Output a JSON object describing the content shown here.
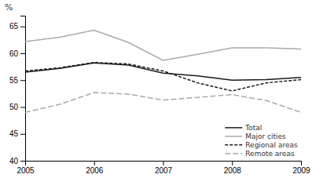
{
  "chart_data": {
    "type": "line",
    "ylabel": "%",
    "x": [
      2005,
      2005.5,
      2006,
      2006.5,
      2007,
      2007.5,
      2008,
      2008.5,
      2009
    ],
    "series": [
      {
        "name": "Total",
        "color": "#1a1a1a",
        "line_style": "solid",
        "values": [
          56.5,
          57.2,
          58.2,
          57.8,
          56.3,
          55.8,
          55.0,
          55.1,
          55.5
        ]
      },
      {
        "name": "Major cities",
        "color": "#aaaaaa",
        "line_style": "solid",
        "values": [
          62.2,
          63.0,
          64.3,
          62.0,
          58.7,
          59.8,
          61.0,
          61.0,
          60.8
        ]
      },
      {
        "name": "Regional areas",
        "color": "#1a1a1a",
        "line_style": "dashed",
        "values": [
          56.7,
          57.3,
          58.3,
          58.0,
          56.7,
          54.5,
          53.0,
          54.5,
          55.1
        ]
      },
      {
        "name": "Remote areas",
        "color": "#aaaaaa",
        "line_style": "longdash",
        "values": [
          49.0,
          50.5,
          52.7,
          52.4,
          51.3,
          51.8,
          52.3,
          51.2,
          49.0
        ]
      }
    ],
    "xlim": [
      2005,
      2009
    ],
    "xticks": [
      2005,
      2006,
      2007,
      2008,
      2009
    ],
    "ylim": [
      40,
      67
    ],
    "yticks": [
      40,
      45,
      50,
      55,
      60,
      65
    ],
    "grid": false,
    "legend": "lower right"
  }
}
